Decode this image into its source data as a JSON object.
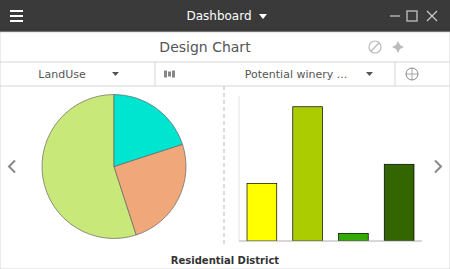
{
  "page": {
    "app_title": "Dashboard",
    "heading": "Design Chart"
  },
  "chart_data": [
    {
      "type": "pie",
      "title": "LandUse",
      "values": [
        55,
        25,
        20
      ],
      "colors": [
        "#c8e87a",
        "#f0a87a",
        "#00e5d0"
      ]
    },
    {
      "type": "bar",
      "title": "Potential winery ...",
      "x_label": "Residential District",
      "categories": [
        null,
        null,
        null,
        null
      ],
      "values": [
        3.0,
        7.0,
        0.4,
        4.0
      ],
      "colors": [
        "#ffff00",
        "#aacc00",
        "#33aa00",
        "#336600"
      ],
      "ylim": [
        0,
        7.56
      ],
      "tick_labels": false
    }
  ]
}
